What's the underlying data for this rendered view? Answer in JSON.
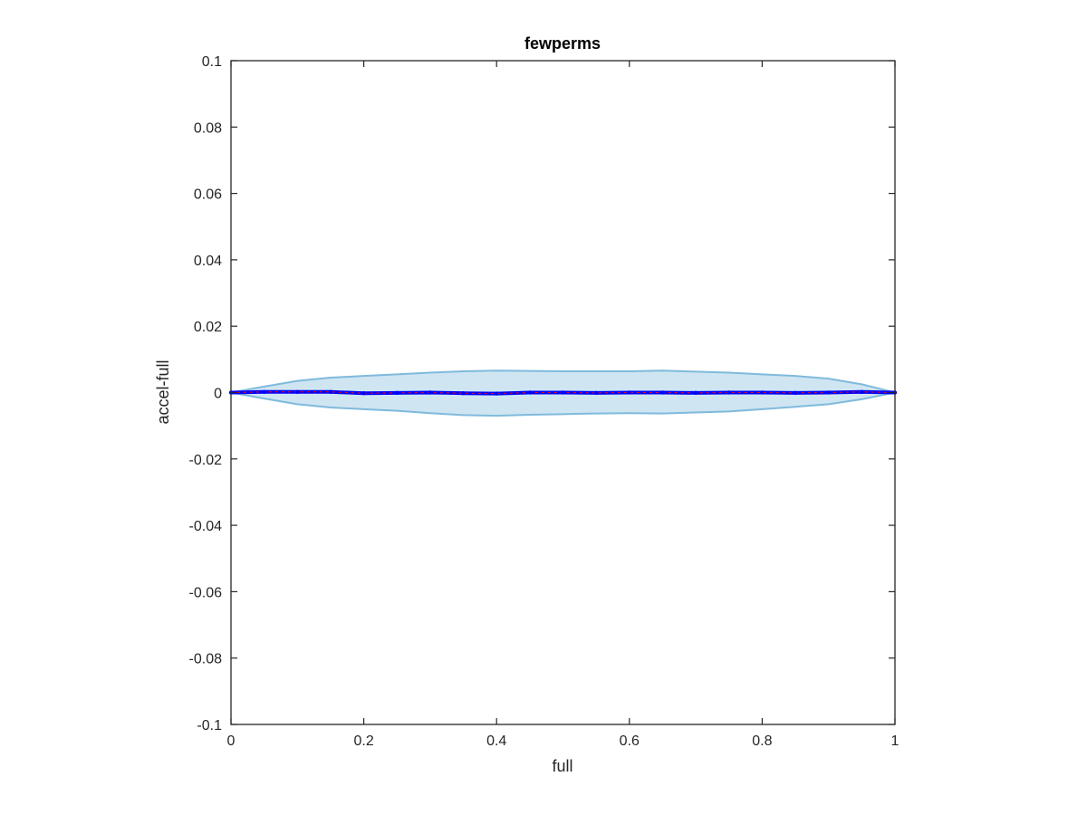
{
  "chart_data": {
    "type": "line",
    "title": "fewperms",
    "xlabel": "full",
    "ylabel": "accel-full",
    "xlim": [
      0,
      1
    ],
    "ylim": [
      -0.1,
      0.1
    ],
    "xticks": [
      "0",
      "0.2",
      "0.4",
      "0.6",
      "0.8",
      "1"
    ],
    "xtick_values": [
      0,
      0.2,
      0.4,
      0.6,
      0.8,
      1
    ],
    "yticks": [
      "-0.1",
      "-0.08",
      "-0.06",
      "-0.04",
      "-0.02",
      "0",
      "0.02",
      "0.04",
      "0.06",
      "0.08",
      "0.1"
    ],
    "ytick_values": [
      -0.1,
      -0.08,
      -0.06,
      -0.04,
      -0.02,
      0,
      0.02,
      0.04,
      0.06,
      0.08,
      0.1
    ],
    "grid": false,
    "colors": {
      "band_fill": "#cfe5f2",
      "band_edge": "#7fbadc",
      "line": "#0000ff",
      "red_line": "#ff0000",
      "axis": "#262626"
    },
    "x": [
      0,
      0.05,
      0.1,
      0.15,
      0.2,
      0.25,
      0.3,
      0.35,
      0.4,
      0.45,
      0.5,
      0.55,
      0.6,
      0.65,
      0.7,
      0.75,
      0.8,
      0.85,
      0.9,
      0.95,
      1
    ],
    "series": [
      {
        "values": [
          0,
          0.0002,
          0.0002,
          0.0002,
          -0.0002,
          -0.0001,
          0,
          -0.0002,
          -0.0003,
          0,
          0,
          -0.0001,
          0,
          0,
          -0.0001,
          0,
          0,
          -0.0001,
          0,
          0.0002,
          0
        ]
      },
      {
        "values": [
          0,
          0.0018,
          0.0035,
          0.0045,
          0.005,
          0.0055,
          0.006,
          0.0064,
          0.0066,
          0.0065,
          0.0064,
          0.0064,
          0.0064,
          0.0066,
          0.0063,
          0.006,
          0.0055,
          0.005,
          0.0042,
          0.0025,
          0
        ]
      },
      {
        "values": [
          0,
          -0.0018,
          -0.0035,
          -0.0045,
          -0.005,
          -0.0055,
          -0.0062,
          -0.0068,
          -0.007,
          -0.0067,
          -0.0065,
          -0.0063,
          -0.0062,
          -0.0063,
          -0.006,
          -0.0057,
          -0.005,
          -0.0043,
          -0.0035,
          -0.002,
          0
        ]
      }
    ]
  }
}
